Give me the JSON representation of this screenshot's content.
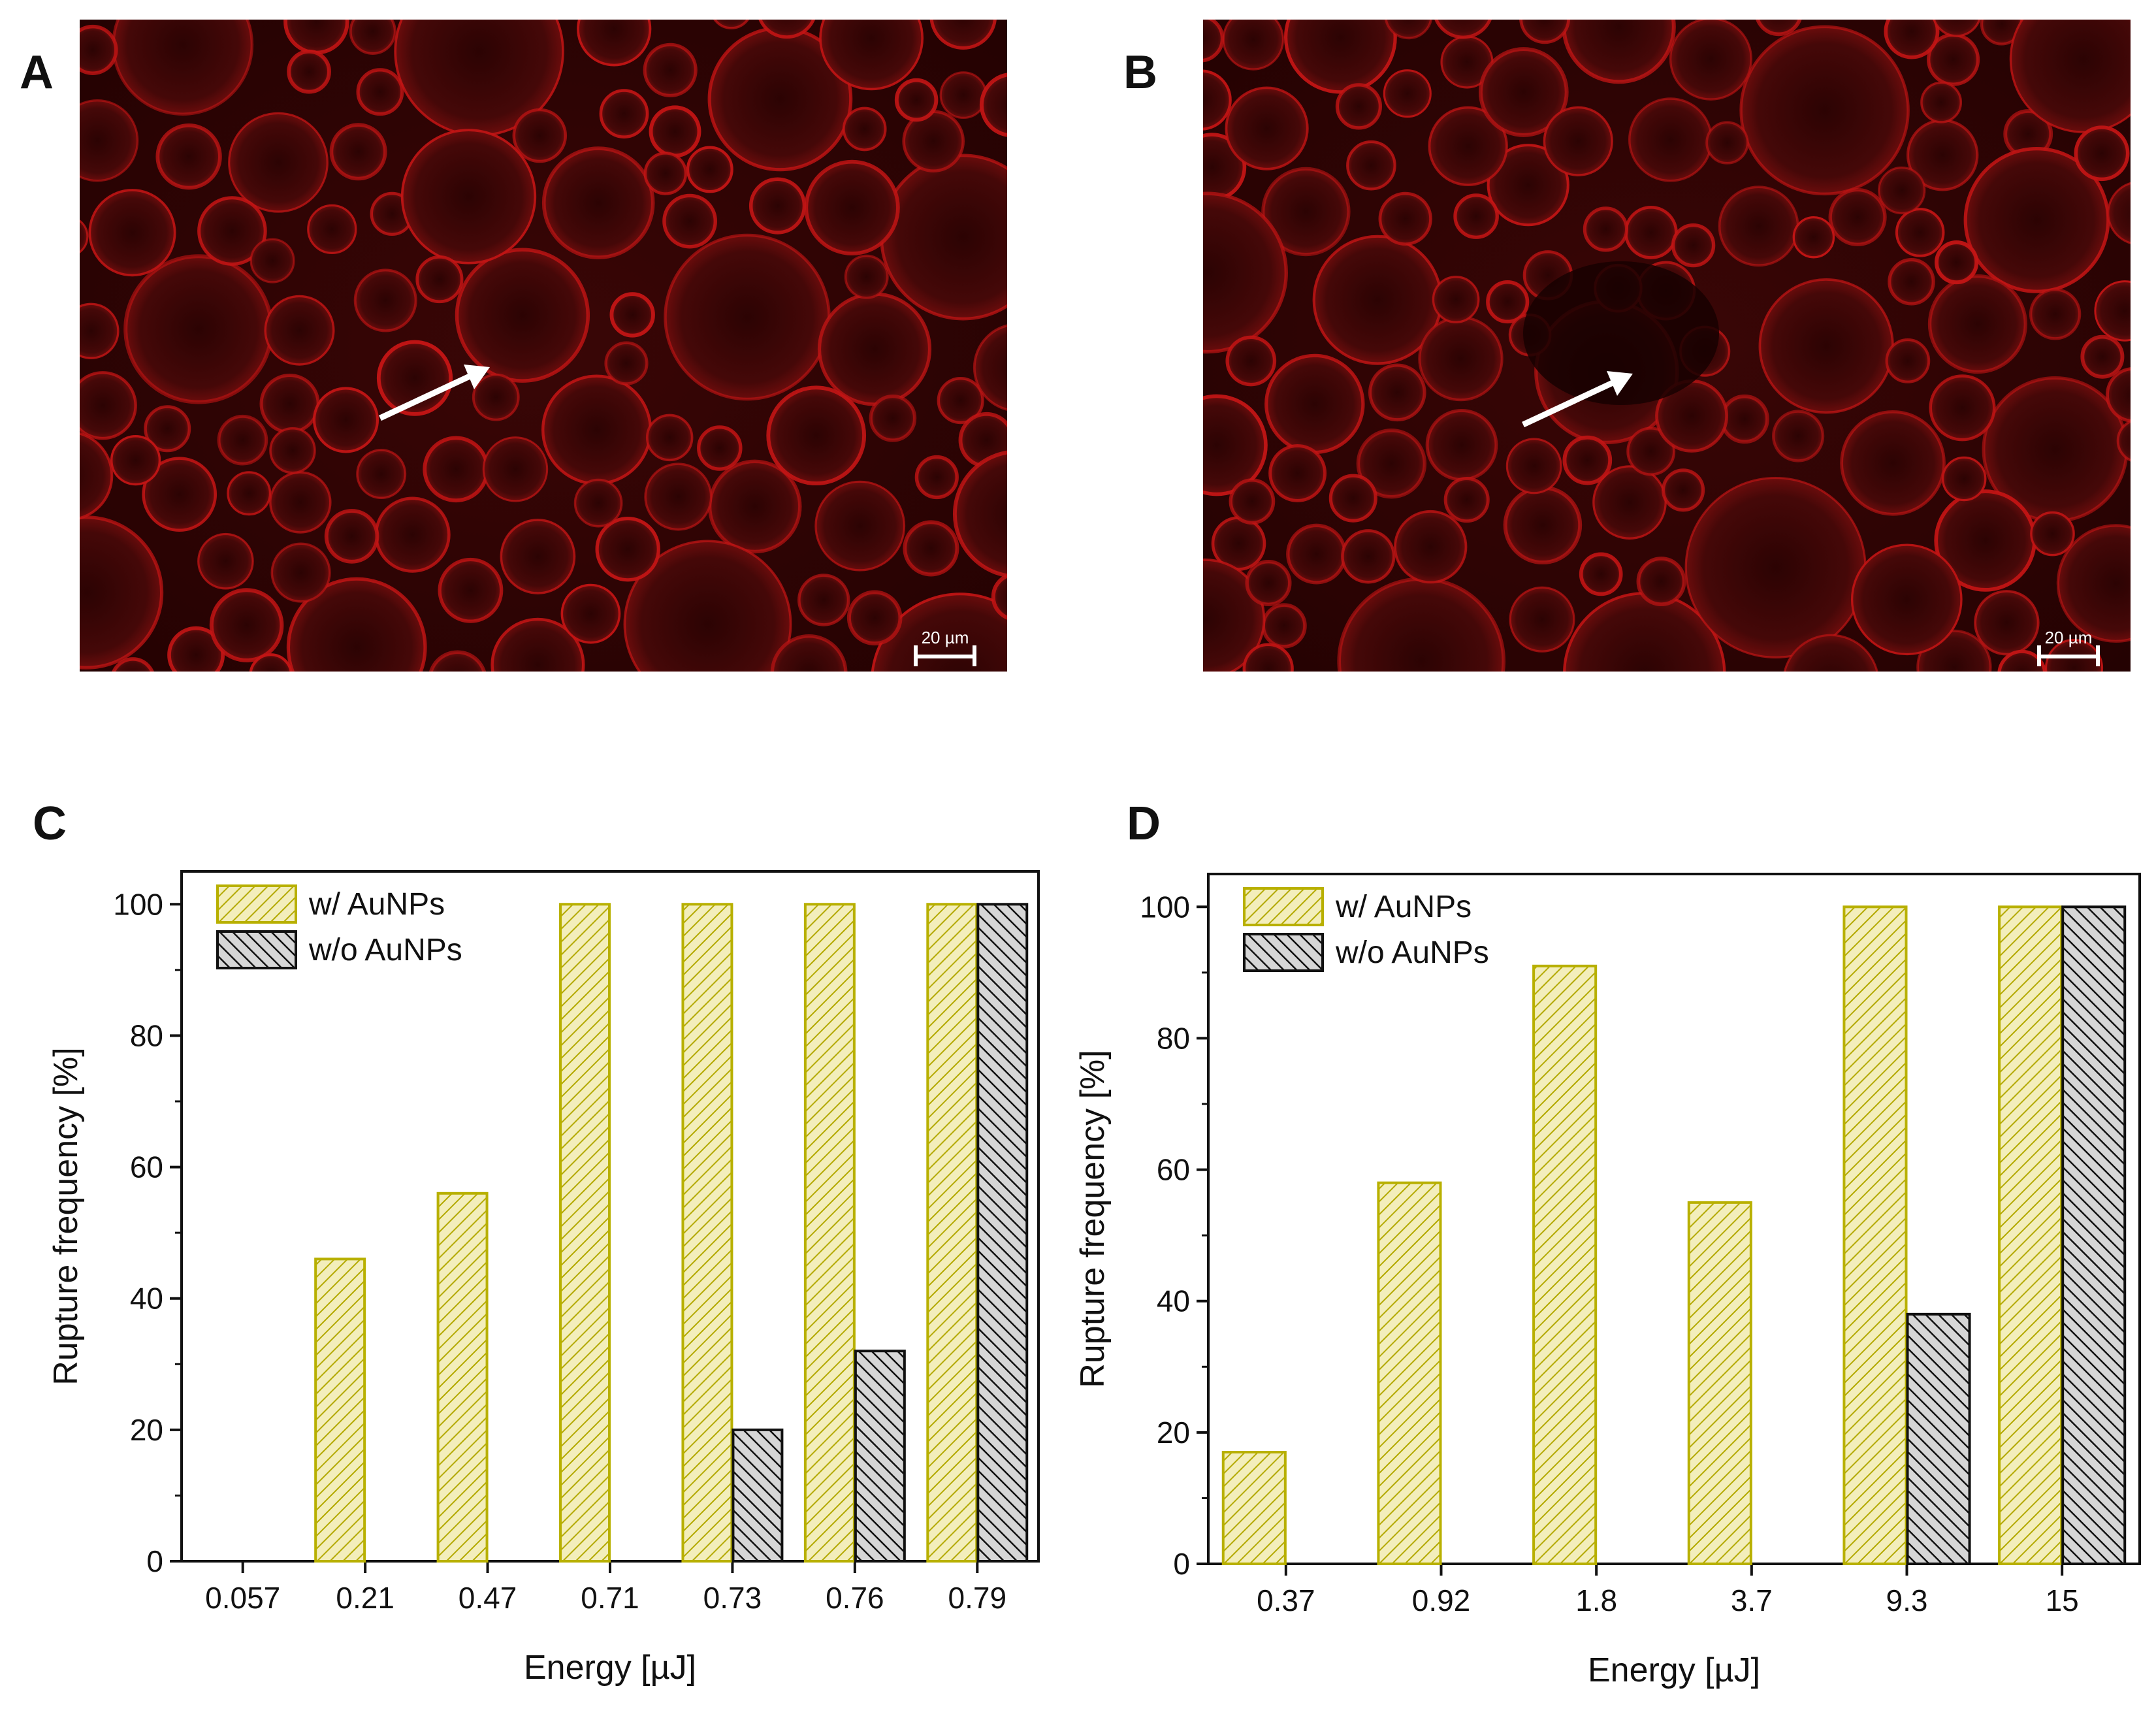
{
  "panels": {
    "a": "A",
    "b": "B",
    "c": "C",
    "d": "D"
  },
  "micrographs": {
    "scale_bar_label": "20 µm",
    "colors": {
      "background": "#2a0303",
      "membrane": "#c41515"
    }
  },
  "chart_data": [
    {
      "type": "bar",
      "panel": "C",
      "xlabel": "Energy [µJ]",
      "ylabel": "Rupture frequency [%]",
      "ylim": [
        0,
        105
      ],
      "yticks": [
        0,
        20,
        40,
        60,
        80,
        100
      ],
      "categories": [
        "0.057",
        "0.21",
        "0.47",
        "0.71",
        "0.73",
        "0.76",
        "0.79"
      ],
      "series": [
        {
          "name": "w/ AuNPs",
          "color": "#b8b000",
          "fill": "#efe8a8",
          "values": [
            0,
            46,
            56,
            100,
            100,
            100,
            100
          ]
        },
        {
          "name": "w/o AuNPs",
          "color": "#111111",
          "fill": "#9a9a9a",
          "values": [
            0,
            0,
            0,
            0,
            20,
            32,
            100
          ]
        }
      ],
      "legend": "top-left"
    },
    {
      "type": "bar",
      "panel": "D",
      "xlabel": "Energy [µJ]",
      "ylabel": "Rupture frequency [%]",
      "ylim": [
        0,
        105
      ],
      "yticks": [
        0,
        20,
        40,
        60,
        80,
        100
      ],
      "categories": [
        "0.37",
        "0.92",
        "1.8",
        "3.7",
        "9.3",
        "15"
      ],
      "series": [
        {
          "name": "w/ AuNPs",
          "color": "#b8b000",
          "fill": "#efe8a8",
          "values": [
            17,
            58,
            91,
            55,
            100,
            100
          ]
        },
        {
          "name": "w/o AuNPs",
          "color": "#111111",
          "fill": "#9a9a9a",
          "values": [
            0,
            0,
            0,
            0,
            38,
            100
          ]
        }
      ],
      "legend": "top-left"
    }
  ]
}
